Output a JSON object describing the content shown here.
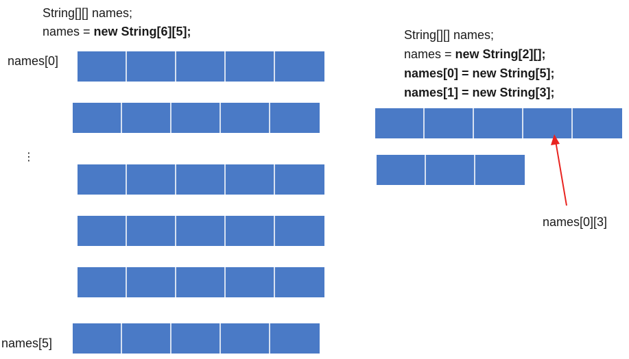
{
  "colors": {
    "cell": "#4a7ac6",
    "arrow": "#e8231f"
  },
  "left": {
    "code": [
      {
        "plain": "String[][] names;",
        "bold": ""
      },
      {
        "plain": "names = ",
        "bold": "new String[6][5];"
      }
    ],
    "row_first_label": "names[0]",
    "row_last_label": "names[5]",
    "ellipsis": "⋮",
    "rows": [
      5,
      5,
      5,
      5,
      5,
      5
    ]
  },
  "right": {
    "code": [
      {
        "plain": "String[][] names;",
        "bold": ""
      },
      {
        "plain": "names = ",
        "bold": "new String[2][];"
      },
      {
        "plain": "",
        "bold": "names[0] = new String[5];"
      },
      {
        "plain": "",
        "bold": "names[1] = new String[3];"
      }
    ],
    "rows": [
      5,
      3
    ],
    "pointer_label": "names[0][3]",
    "pointer_target": {
      "row": 0,
      "col": 3
    }
  }
}
